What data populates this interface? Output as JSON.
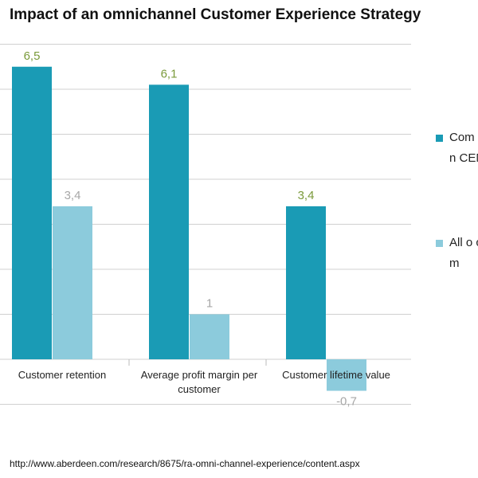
{
  "chart_data": {
    "type": "bar",
    "title": "Impact of an omnichannel Customer Experience Strategy",
    "categories": [
      "Customer retention",
      "Average profit margin per customer",
      "Customer lifetime value"
    ],
    "series": [
      {
        "name": "Com omn CEM",
        "values": [
          6.5,
          6.1,
          3.4
        ],
        "labels": [
          "6,5",
          "6,1",
          "3,4"
        ],
        "color": "#1a9bb5",
        "label_color": "#7a9a3a"
      },
      {
        "name": "All o com",
        "values": [
          3.4,
          1.0,
          -0.7
        ],
        "labels": [
          "3,4",
          "1",
          "-0,7"
        ],
        "color": "#8ccbdc",
        "label_color": "#a7a7a7"
      }
    ],
    "ylim": [
      -1,
      7
    ],
    "grid": true,
    "legend": "right"
  },
  "source": "http://www.aberdeen.com/research/8675/ra-omni-channel-experience/content.aspx"
}
